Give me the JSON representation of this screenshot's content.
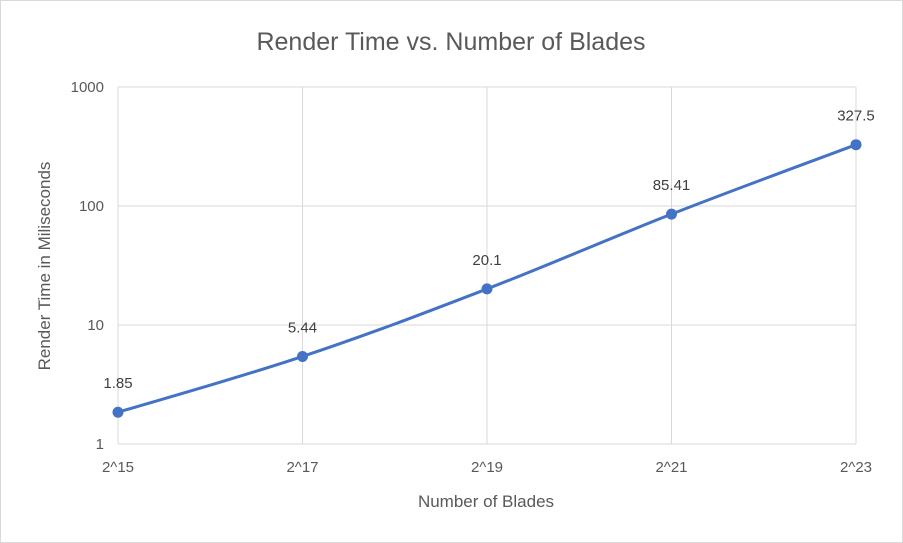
{
  "chart_data": {
    "type": "line",
    "title": "Render Time vs. Number of Blades",
    "xlabel": "Number of Blades",
    "ylabel": "Render Time in Miliseconds",
    "categories": [
      "2^15",
      "2^17",
      "2^19",
      "2^21",
      "2^23"
    ],
    "series": [
      {
        "values": [
          1.85,
          5.44,
          20.1,
          85.41,
          327.5
        ],
        "data_labels": [
          "1.85",
          "5.44",
          "20.1",
          "85.41",
          "327.5"
        ],
        "color": "#4472c4"
      }
    ],
    "y_scale": "log",
    "ylim": [
      1,
      1000
    ],
    "y_ticks": [
      "1",
      "10",
      "100",
      "1000"
    ],
    "grid": true,
    "legend": "none"
  }
}
